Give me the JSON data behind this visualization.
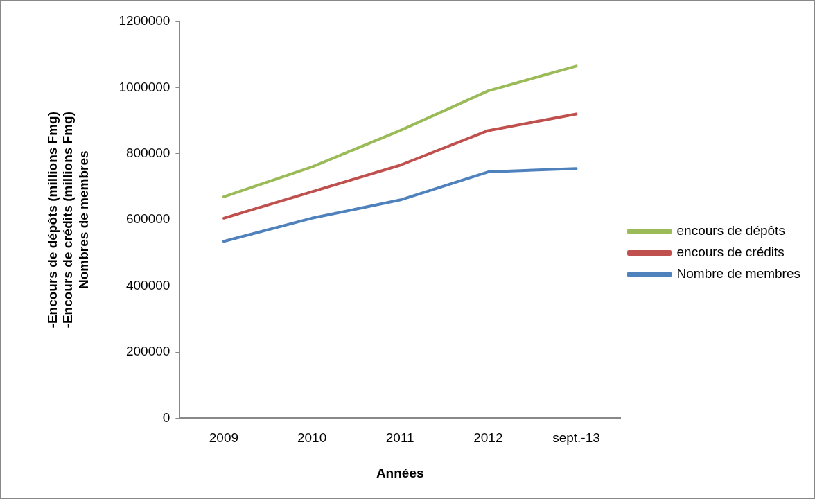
{
  "chart_data": {
    "type": "line",
    "xlabel": "Années",
    "ylabel": "-Encours de dépôts (millions Fmg)\n-Encours de crédits (millions Fmg)\nNombres de membres",
    "categories": [
      "2009",
      "2010",
      "2011",
      "2012",
      "sept.-13"
    ],
    "series": [
      {
        "name": "encours de dépôts",
        "color": "#9bbb59",
        "values": [
          670000,
          760000,
          870000,
          990000,
          1065000
        ]
      },
      {
        "name": "encours de crédits",
        "color": "#c0504d",
        "values": [
          605000,
          685000,
          765000,
          870000,
          920000
        ]
      },
      {
        "name": "Nombre de membres",
        "color": "#4f81bd",
        "values": [
          535000,
          605000,
          660000,
          745000,
          755000
        ]
      }
    ],
    "ylim": [
      0,
      1200000
    ],
    "yticks": [
      0,
      200000,
      400000,
      600000,
      800000,
      1000000,
      1200000
    ],
    "grid": false,
    "legend": "right",
    "marker": "none",
    "line_style": "solid"
  }
}
